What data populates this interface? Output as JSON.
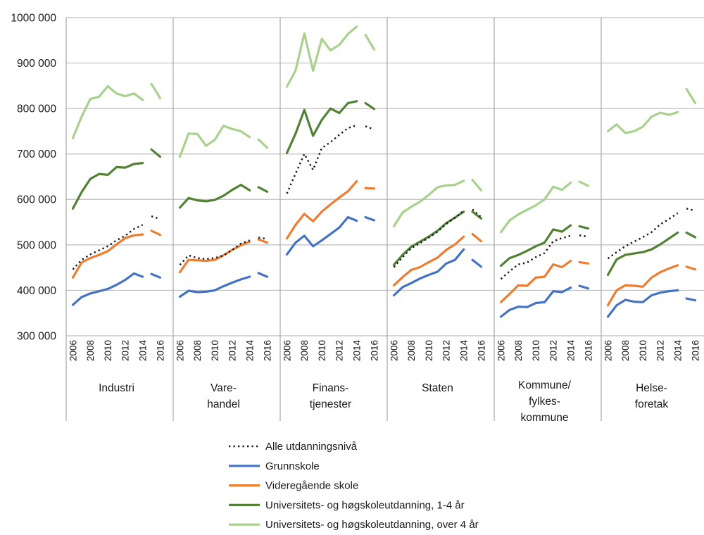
{
  "chart_data": {
    "type": "line",
    "title": "",
    "ylabel": "",
    "ylim": [
      300000,
      1000000
    ],
    "ytick_step": 100000,
    "ytick_labels": [
      "300 000",
      "400 000",
      "500 000",
      "600 000",
      "700 000",
      "800 000",
      "900 000",
      "1000 000"
    ],
    "grid": true,
    "legend_position": "bottom-left",
    "x_years": [
      2006,
      2007,
      2008,
      2009,
      2010,
      2011,
      2012,
      2013,
      2014,
      2015,
      2016
    ],
    "x_tick_labels": [
      "2006",
      "2008",
      "2010",
      "2012",
      "2014",
      "2016"
    ],
    "series_break": {
      "after_year": 2014,
      "note": "separate short segment for 2015-2016"
    },
    "series_meta": [
      {
        "id": "alle",
        "label": "Alle utdanningsnivå",
        "color": "#1a1a1a",
        "style": "dotted"
      },
      {
        "id": "grunnskole",
        "label": "Grunnskole",
        "color": "#4472c4",
        "style": "solid"
      },
      {
        "id": "videregaende",
        "label": "Videregående skole",
        "color": "#ed7d31",
        "style": "solid"
      },
      {
        "id": "uni_1_4",
        "label": "Universitets- og høgskoleutdanning, 1-4 år",
        "color": "#538135",
        "style": "solid"
      },
      {
        "id": "uni_over_4",
        "label": "Universitets- og høgskoleutdanning, over 4 år",
        "color": "#a9d18e",
        "style": "solid"
      }
    ],
    "panels": [
      {
        "label_lines": [
          "Industri"
        ],
        "series": {
          "alle": [
            446000,
            467000,
            479000,
            488000,
            497000,
            510000,
            520000,
            535000,
            544000,
            563000,
            557000
          ],
          "grunnskole": [
            368000,
            385000,
            393000,
            398000,
            403000,
            412000,
            423000,
            437000,
            430000,
            436000,
            428000
          ],
          "videregaende": [
            428000,
            461000,
            471000,
            478000,
            486000,
            501000,
            515000,
            521000,
            523000,
            531000,
            522000
          ],
          "uni_1_4": [
            580000,
            616000,
            645000,
            656000,
            654000,
            671000,
            670000,
            678000,
            680000,
            710000,
            694000
          ],
          "uni_over_4": [
            735000,
            782000,
            821000,
            826000,
            849000,
            833000,
            827000,
            833000,
            819000,
            854000,
            823000
          ]
        }
      },
      {
        "label_lines": [
          "Vare-",
          "handel"
        ],
        "series": {
          "alle": [
            456000,
            477000,
            471000,
            469000,
            471000,
            477000,
            489000,
            503000,
            510000,
            516000,
            513000
          ],
          "grunnskole": [
            386000,
            399000,
            396000,
            397000,
            400000,
            409000,
            417000,
            424000,
            430000,
            438000,
            430000
          ],
          "videregaende": [
            440000,
            467000,
            466000,
            465000,
            467000,
            477000,
            489000,
            499000,
            507000,
            512000,
            505000
          ],
          "uni_1_4": [
            582000,
            603000,
            598000,
            596000,
            599000,
            608000,
            621000,
            632000,
            620000,
            627000,
            617000
          ],
          "uni_over_4": [
            694000,
            745000,
            744000,
            718000,
            731000,
            762000,
            755000,
            750000,
            737000,
            732000,
            714000
          ]
        }
      },
      {
        "label_lines": [
          "Finans-",
          "tjenester"
        ],
        "series": {
          "alle": [
            613000,
            657000,
            700000,
            665000,
            713000,
            726000,
            742000,
            757000,
            763000,
            761000,
            754000
          ],
          "grunnskole": [
            479000,
            505000,
            520000,
            497000,
            510000,
            524000,
            538000,
            561000,
            553000,
            561000,
            554000
          ],
          "videregaende": [
            514000,
            544000,
            568000,
            552000,
            573000,
            589000,
            604000,
            618000,
            640000,
            625000,
            624000
          ],
          "uni_1_4": [
            702000,
            745000,
            797000,
            740000,
            775000,
            800000,
            790000,
            812000,
            816000,
            812000,
            799000
          ],
          "uni_over_4": [
            848000,
            884000,
            965000,
            883000,
            953000,
            928000,
            940000,
            964000,
            980000,
            962000,
            930000
          ]
        }
      },
      {
        "label_lines": [
          "Staten"
        ],
        "series": {
          "alle": [
            451000,
            473000,
            493000,
            504000,
            516000,
            529000,
            546000,
            560000,
            575000,
            578000,
            561000
          ],
          "grunnskole": [
            389000,
            407000,
            416000,
            426000,
            434000,
            441000,
            459000,
            467000,
            490000,
            467000,
            452000
          ],
          "videregaende": [
            411000,
            429000,
            445000,
            451000,
            462000,
            472000,
            489000,
            501000,
            518000,
            524000,
            508000
          ],
          "uni_1_4": [
            456000,
            478000,
            496000,
            507000,
            518000,
            531000,
            548000,
            560000,
            573000,
            573000,
            558000
          ],
          "uni_over_4": [
            541000,
            571000,
            584000,
            595000,
            610000,
            627000,
            631000,
            632000,
            641000,
            643000,
            620000
          ]
        }
      },
      {
        "label_lines": [
          "Kommune/",
          "fylkes-",
          "kommune"
        ],
        "series": {
          "alle": [
            425000,
            442000,
            457000,
            461000,
            473000,
            482000,
            508000,
            515000,
            520000,
            521000,
            518000
          ],
          "grunnskole": [
            342000,
            357000,
            364000,
            363000,
            372000,
            374000,
            398000,
            396000,
            406000,
            410000,
            404000
          ],
          "videregaende": [
            374000,
            392000,
            411000,
            410000,
            428000,
            430000,
            457000,
            451000,
            465000,
            462000,
            459000
          ],
          "uni_1_4": [
            454000,
            471000,
            478000,
            487000,
            497000,
            505000,
            534000,
            529000,
            543000,
            541000,
            536000
          ],
          "uni_over_4": [
            528000,
            554000,
            567000,
            577000,
            587000,
            600000,
            628000,
            621000,
            637000,
            639000,
            630000
          ]
        }
      },
      {
        "label_lines": [
          "Helse-",
          "foretak"
        ],
        "series": {
          "alle": [
            470000,
            484000,
            497000,
            507000,
            517000,
            528000,
            545000,
            557000,
            570000,
            580000,
            575000
          ],
          "grunnskole": [
            342000,
            367000,
            379000,
            375000,
            374000,
            389000,
            395000,
            398000,
            400000,
            382000,
            378000
          ],
          "videregaende": [
            367000,
            400000,
            411000,
            410000,
            408000,
            428000,
            440000,
            448000,
            455000,
            452000,
            446000
          ],
          "uni_1_4": [
            434000,
            468000,
            478000,
            481000,
            484000,
            490000,
            501000,
            514000,
            527000,
            527000,
            517000
          ],
          "uni_over_4": [
            750000,
            765000,
            746000,
            750000,
            760000,
            782000,
            791000,
            786000,
            792000,
            843000,
            812000
          ]
        }
      }
    ],
    "colors": {
      "gridline": "#bfbfbf",
      "separator": "#a6a6a6",
      "text": "#1a1a1a",
      "background": "#ffffff"
    }
  }
}
